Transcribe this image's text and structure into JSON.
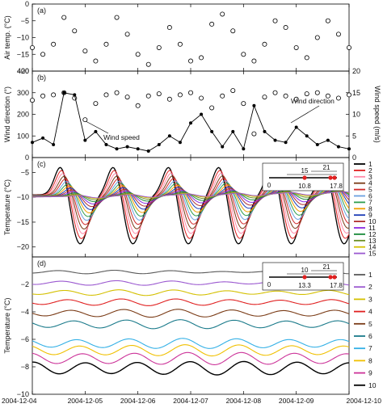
{
  "chart_data": [
    {
      "id": "a",
      "type": "scatter",
      "panel_label": "(a)",
      "ylabel": "Air temp. (°C)",
      "ylim": [
        -20,
        0
      ],
      "yticks": [
        0,
        -5,
        -10,
        -15,
        -20
      ],
      "x_range": [
        "2004-12-04",
        "2004-12-10"
      ],
      "grid": false,
      "series": [
        {
          "marker": "open-circle",
          "x_days": [
            0,
            0.2,
            0.4,
            0.6,
            0.8,
            1.0,
            1.2,
            1.4,
            1.6,
            1.8,
            2.0,
            2.2,
            2.4,
            2.6,
            2.8,
            3.0,
            3.2,
            3.4,
            3.6,
            3.8,
            4.0,
            4.2,
            4.4,
            4.6,
            4.8,
            5.0,
            5.2,
            5.4,
            5.6,
            5.8,
            6.0
          ],
          "values": [
            -13,
            -15,
            -12,
            -4,
            -8,
            -14,
            -17,
            -12,
            -4,
            -9,
            -15,
            -18,
            -13,
            -7,
            -12,
            -17,
            -16,
            -6,
            -3,
            -8,
            -15,
            -17,
            -12,
            -5,
            -7,
            -13,
            -16,
            -10,
            -5,
            -9,
            -13
          ]
        }
      ]
    },
    {
      "id": "b",
      "type": "scatter",
      "panel_label": "(b)",
      "ylabel": "Wind direction (°)",
      "y2label": "Wind speed (m/s)",
      "ylim": [
        0,
        400
      ],
      "yticks": [
        0,
        100,
        200,
        300,
        400
      ],
      "y2lim": [
        0,
        20
      ],
      "y2ticks": [
        0,
        5,
        10,
        15,
        20
      ],
      "x_range": [
        "2004-12-04",
        "2004-12-10"
      ],
      "annotations": [
        "Wind direction",
        "Wind speed"
      ],
      "series": [
        {
          "name": "Wind direction",
          "marker": "open-circle",
          "axis": "left",
          "x_days": [
            0,
            0.2,
            0.4,
            0.6,
            0.8,
            1.0,
            1.2,
            1.4,
            1.6,
            1.8,
            2.0,
            2.2,
            2.4,
            2.6,
            2.8,
            3.0,
            3.2,
            3.4,
            3.6,
            3.8,
            4.0,
            4.2,
            4.4,
            4.6,
            4.8,
            5.0,
            5.2,
            5.4,
            5.6,
            5.8,
            6.0
          ],
          "values": [
            265,
            285,
            290,
            300,
            275,
            175,
            250,
            290,
            300,
            280,
            240,
            285,
            295,
            270,
            290,
            300,
            275,
            230,
            285,
            310,
            250,
            110,
            280,
            300,
            285,
            270,
            295,
            300,
            285,
            275,
            290
          ]
        },
        {
          "name": "Wind speed",
          "marker": "filled-circle-line",
          "axis": "right",
          "x_days": [
            0,
            0.2,
            0.4,
            0.6,
            0.8,
            1.0,
            1.2,
            1.4,
            1.6,
            1.8,
            2.0,
            2.2,
            2.4,
            2.6,
            2.8,
            3.0,
            3.2,
            3.4,
            3.6,
            3.8,
            4.0,
            4.2,
            4.4,
            4.6,
            4.8,
            5.0,
            5.2,
            5.4,
            5.6,
            5.8,
            6.0
          ],
          "values": [
            3.5,
            4.5,
            3,
            15,
            14.5,
            4,
            6,
            3,
            2,
            2.5,
            2,
            1.5,
            3,
            5,
            3.5,
            8,
            10,
            6,
            2.5,
            6,
            2,
            12,
            6,
            4,
            3.5,
            7,
            5,
            3,
            4,
            2.5,
            2
          ]
        }
      ]
    },
    {
      "id": "c",
      "type": "line",
      "panel_label": "(c)",
      "ylabel": "Temperature (°C)",
      "ylim": [
        -22,
        -2
      ],
      "yticks": [
        -5,
        -10,
        -15,
        -20
      ],
      "x_range": [
        "2004-12-04",
        "2004-12-10"
      ],
      "inset": {
        "scale_ticks": [
          "0",
          "15",
          "21"
        ],
        "marks": [
          "10.8",
          "17.8"
        ]
      },
      "legend": {
        "position": "right",
        "entries": [
          "1",
          "2",
          "3",
          "4",
          "5",
          "6",
          "7",
          "8",
          "9",
          "10",
          "11",
          "12",
          "13",
          "14",
          "15"
        ]
      },
      "series_colors": [
        "#000000",
        "#e02020",
        "#ff8aa8",
        "#7a3b16",
        "#d12a2a",
        "#6aa0e0",
        "#2e9e4e",
        "#f0a000",
        "#1a3bb5",
        "#b03030",
        "#8a2be2",
        "#1a8a3a",
        "#6b8e23",
        "#d4c000",
        "#9b59d0"
      ]
    },
    {
      "id": "d",
      "type": "line",
      "panel_label": "(d)",
      "ylabel": "Temperature (°C)",
      "ylim": [
        -10,
        0
      ],
      "yticks": [
        -2,
        -4,
        -6,
        -8,
        -10
      ],
      "x_range": [
        "2004-12-04",
        "2004-12-10"
      ],
      "xticks": [
        "2004-12-04",
        "2004-12-05",
        "2004-12-06",
        "2004-12-07",
        "2004-12-08",
        "2004-12-09",
        "2004-12-10"
      ],
      "inset": {
        "scale_ticks": [
          "0",
          "10",
          "21"
        ],
        "marks": [
          "13.3",
          "17.8"
        ]
      },
      "legend": {
        "position": "right",
        "entries": [
          "1",
          "2",
          "3",
          "4",
          "5",
          "6",
          "7",
          "8",
          "9",
          "10"
        ]
      },
      "series_colors": [
        "#5a5a5a",
        "#9b59d0",
        "#d4c000",
        "#e02020",
        "#7a3b16",
        "#1a7a8a",
        "#33b0e6",
        "#f0c000",
        "#cc3399",
        "#000000"
      ],
      "series_levels": [
        -1.1,
        -1.9,
        -2.6,
        -3.3,
        -4.1,
        -4.9,
        -6.3,
        -6.8,
        -7.4,
        -8.1
      ]
    }
  ]
}
